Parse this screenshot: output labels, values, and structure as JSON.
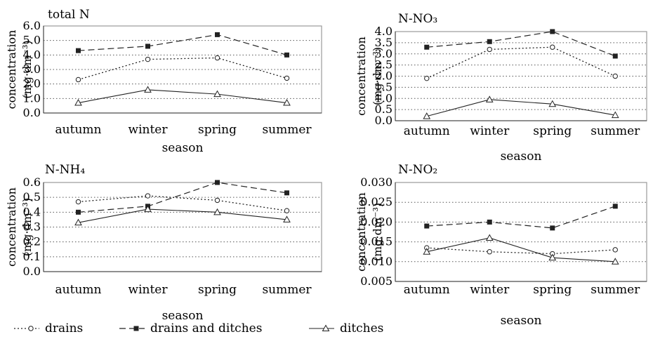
{
  "chart_data": [
    {
      "type": "line",
      "title": "total N",
      "xlabel": "season",
      "ylabel": "concentration",
      "yunit": "(mg·dm⁻³)",
      "categories": [
        "autumn",
        "winter",
        "spring",
        "summer"
      ],
      "ylim": [
        0.0,
        6.0
      ],
      "yticks": [
        "0.0",
        "1.0",
        "2.0",
        "3.0",
        "4.0",
        "5.0",
        "6.0"
      ],
      "grid": true,
      "series": [
        {
          "name": "drains",
          "values": [
            2.3,
            3.7,
            3.8,
            2.4
          ]
        },
        {
          "name": "drains and ditches",
          "values": [
            4.3,
            4.6,
            5.4,
            4.0
          ]
        },
        {
          "name": "ditches",
          "values": [
            0.7,
            1.6,
            1.3,
            0.7
          ]
        }
      ]
    },
    {
      "type": "line",
      "title": "N-NO₃",
      "xlabel": "season",
      "ylabel": "concentration",
      "yunit": "(mg·dm⁻³)",
      "categories": [
        "autumn",
        "winter",
        "spring",
        "summer"
      ],
      "ylim": [
        0.0,
        4.0
      ],
      "yticks": [
        "0.0",
        "0.5",
        "1.0",
        "1.5",
        "2.0",
        "2.5",
        "3.0",
        "3.5",
        "4.0"
      ],
      "grid": true,
      "series": [
        {
          "name": "drains",
          "values": [
            1.9,
            3.2,
            3.3,
            2.0
          ]
        },
        {
          "name": "drains and ditches",
          "values": [
            3.3,
            3.55,
            4.0,
            2.9
          ]
        },
        {
          "name": "ditches",
          "values": [
            0.2,
            0.95,
            0.75,
            0.25
          ]
        }
      ]
    },
    {
      "type": "line",
      "title": "N-NH₄",
      "xlabel": "season",
      "ylabel": "concentration",
      "yunit": "(mg·dm⁻³)",
      "categories": [
        "autumn",
        "winter",
        "spring",
        "summer"
      ],
      "ylim": [
        0.0,
        0.6
      ],
      "yticks": [
        "0.0",
        "0.1",
        "0.2",
        "0.3",
        "0.4",
        "0.5",
        "0.6"
      ],
      "grid": true,
      "series": [
        {
          "name": "drains",
          "values": [
            0.47,
            0.51,
            0.48,
            0.41
          ]
        },
        {
          "name": "drains and ditches",
          "values": [
            0.4,
            0.44,
            0.6,
            0.53
          ]
        },
        {
          "name": "ditches",
          "values": [
            0.33,
            0.42,
            0.4,
            0.35
          ]
        }
      ]
    },
    {
      "type": "line",
      "title": "N-NO₂",
      "xlabel": "season",
      "ylabel": "concentration",
      "yunit": "(mg·dm⁻³)",
      "categories": [
        "autumn",
        "winter",
        "spring",
        "summer"
      ],
      "ylim": [
        0.005,
        0.03
      ],
      "yticks": [
        "0.005",
        "0.010",
        "0.015",
        "0.020",
        "0.025",
        "0.030"
      ],
      "grid": true,
      "series": [
        {
          "name": "drains",
          "values": [
            0.0135,
            0.0125,
            0.012,
            0.013
          ]
        },
        {
          "name": "drains and ditches",
          "values": [
            0.019,
            0.02,
            0.0185,
            0.024
          ]
        },
        {
          "name": "ditches",
          "values": [
            0.0125,
            0.016,
            0.011,
            0.01
          ]
        }
      ]
    }
  ],
  "legend": {
    "placement": "bottom",
    "items": [
      {
        "label": "drains",
        "style": "dotted",
        "marker": "open-circle"
      },
      {
        "label": "drains and ditches",
        "style": "dashed",
        "marker": "filled-square"
      },
      {
        "label": "ditches",
        "style": "solid",
        "marker": "open-triangle"
      }
    ]
  }
}
